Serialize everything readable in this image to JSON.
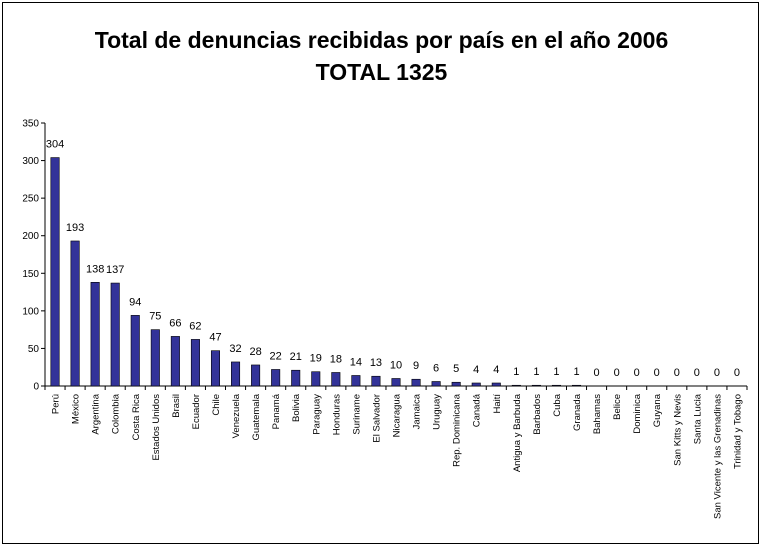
{
  "chart_data": {
    "type": "bar",
    "title": "Total de denuncias recibidas por país en el año 2006",
    "subtitle": "TOTAL 1325",
    "xlabel": "",
    "ylabel": "",
    "ylim": [
      0,
      350
    ],
    "yticks": [
      0,
      50,
      100,
      150,
      200,
      250,
      300,
      350
    ],
    "grid": false,
    "legend": "none",
    "bar_color": "#333399",
    "categories": [
      "Perú",
      "México",
      "Argentina",
      "Colombia",
      "Costa Rica",
      "Estados Unidos",
      "Brasil",
      "Ecuador",
      "Chile",
      "Venezuela",
      "Guatemala",
      "Panamá",
      "Bolivia",
      "Paraguay",
      "Honduras",
      "Suriname",
      "El Salvador",
      "Nicaragua",
      "Jamaica",
      "Uruguay",
      "Rep. Dominicana",
      "Canadá",
      "Haití",
      "Antigua y Barbuda",
      "Barbados",
      "Cuba",
      "Granada",
      "Bahamas",
      "Belice",
      "Dominica",
      "Guyana",
      "San Kitts y Nevis",
      "Santa Lucia",
      "San Vicente y las Grenadinas",
      "Trinidad y Tobago"
    ],
    "values": [
      304,
      193,
      138,
      137,
      94,
      75,
      66,
      62,
      47,
      32,
      28,
      22,
      21,
      19,
      18,
      14,
      13,
      10,
      9,
      6,
      5,
      4,
      4,
      1,
      1,
      1,
      1,
      0,
      0,
      0,
      0,
      0,
      0,
      0,
      0
    ]
  }
}
